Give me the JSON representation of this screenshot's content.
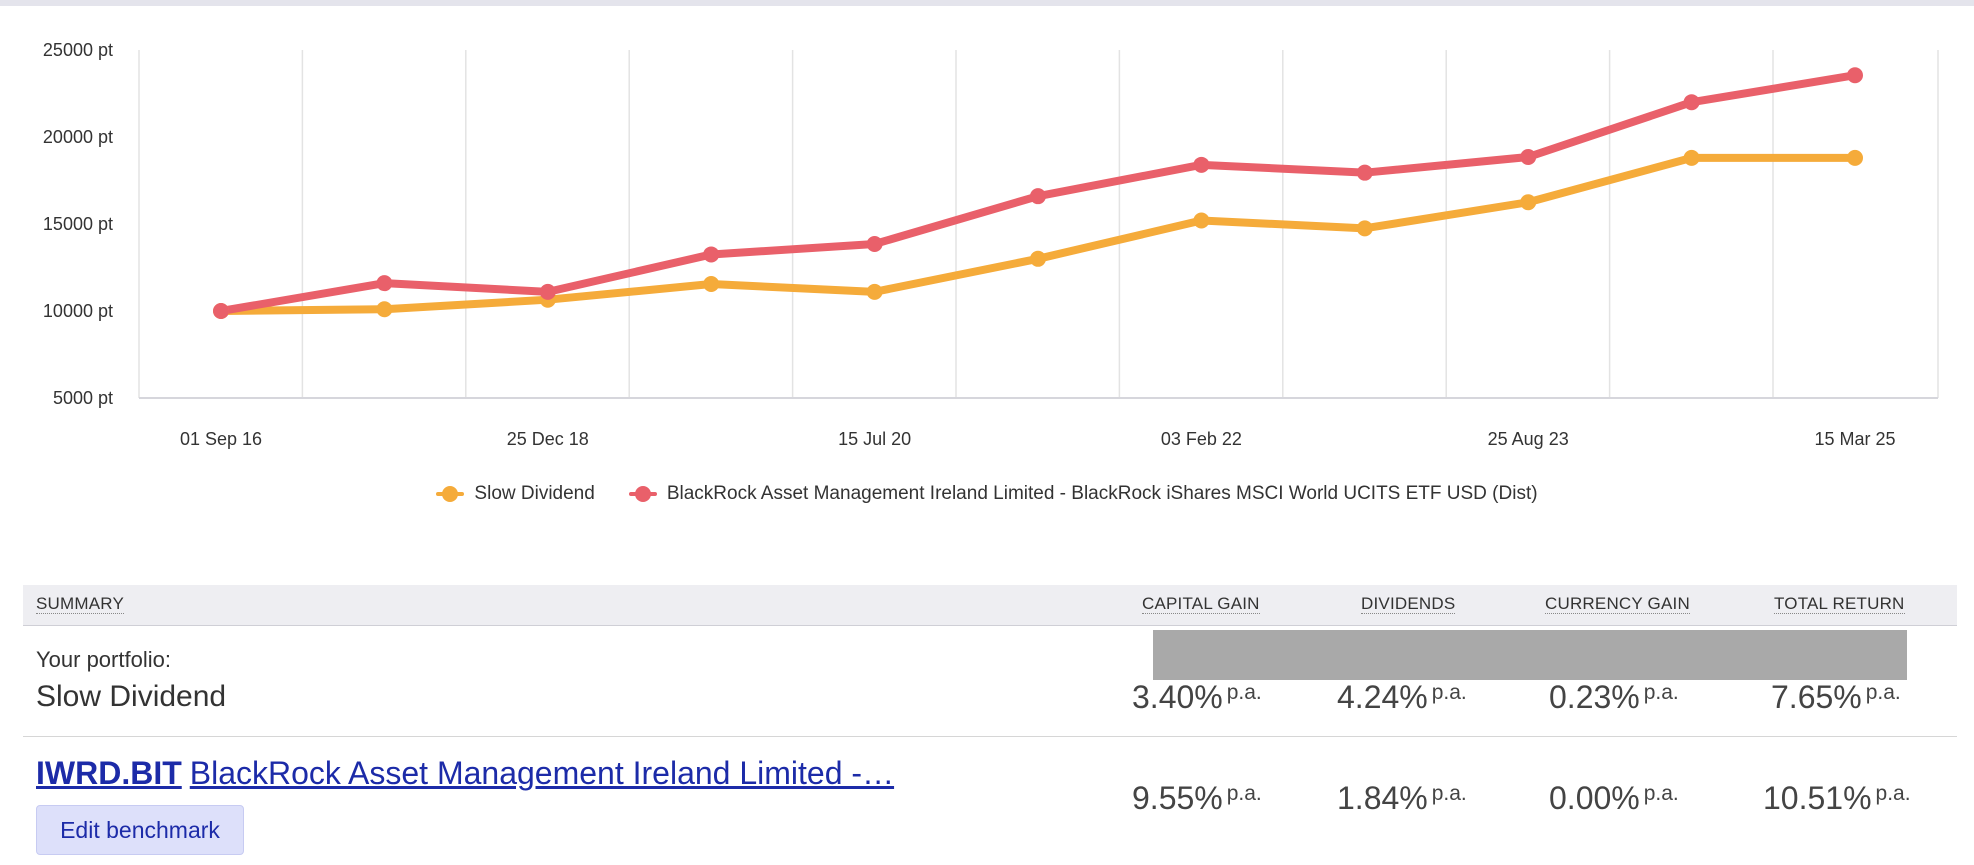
{
  "chart_data": {
    "type": "line",
    "x": [
      "01 Sep 16",
      "",
      "25 Dec 18",
      "",
      "15 Jul 20",
      "",
      "03 Feb 22",
      "",
      "25 Aug 23",
      "",
      "15 Mar 25"
    ],
    "xticks": [
      "01 Sep 16",
      "25 Dec 18",
      "15 Jul 20",
      "03 Feb 22",
      "25 Aug 23",
      "15 Mar 25"
    ],
    "yticks": [
      "25000 pt",
      "20000 pt",
      "15000 pt",
      "10000 pt",
      "5000 pt"
    ],
    "ylim": [
      5000,
      25000
    ],
    "grid": true,
    "legend_position": "bottom",
    "series": [
      {
        "name": "Slow Dividend",
        "color": "#f5ab3a",
        "values": [
          10000,
          10100,
          10650,
          11550,
          11100,
          13000,
          15200,
          14750,
          16250,
          18800,
          18800
        ]
      },
      {
        "name": "BlackRock Asset Management Ireland Limited - BlackRock iShares MSCI World UCITS ETF USD (Dist)",
        "color": "#e9606a",
        "values": [
          10000,
          11600,
          11100,
          13250,
          13850,
          16600,
          18400,
          17950,
          18850,
          22000,
          23550
        ]
      }
    ]
  },
  "summary": {
    "header": {
      "summary": "SUMMARY",
      "capital_gain": "CAPITAL GAIN",
      "dividends": "DIVIDENDS",
      "currency_gain": "CURRENCY GAIN",
      "total_return": "TOTAL RETURN"
    },
    "portfolio": {
      "label": "Your portfolio:",
      "name": "Slow Dividend",
      "capital_gain": "3.40%",
      "dividends": "4.24%",
      "currency_gain": "0.23%",
      "total_return": "7.65%"
    },
    "benchmark": {
      "ticker": "IWRD.BIT",
      "name": "BlackRock Asset Management Ireland Limited -…",
      "capital_gain": "9.55%",
      "dividends": "1.84%",
      "currency_gain": "0.00%",
      "total_return": "10.51%",
      "edit_label": "Edit benchmark"
    },
    "pa": "p.a."
  }
}
